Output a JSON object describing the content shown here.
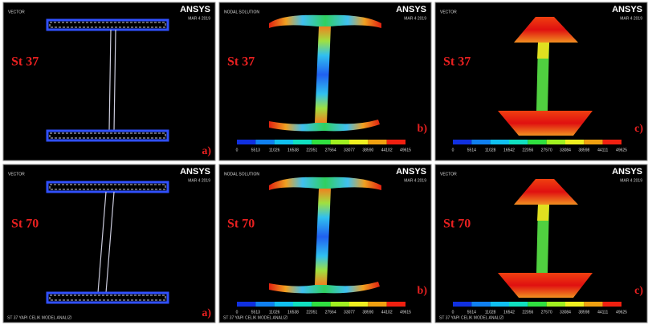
{
  "panels": [
    {
      "header": "VECTOR",
      "logo": "ANSYS",
      "date": "MAR 4 2019",
      "material": "St 37",
      "tag": "a)"
    },
    {
      "header": "NODAL SOLUTION",
      "logo": "ANSYS",
      "date": "MAR 4 2019",
      "material": "St 37",
      "tag": "b)",
      "colorbar": [
        0,
        5513,
        11026,
        16538,
        22051,
        27564,
        33077,
        38590,
        44102,
        49615
      ]
    },
    {
      "header": "VECTOR",
      "logo": "ANSYS",
      "date": "MAR 4 2019",
      "material": "St 37",
      "tag": "c)",
      "colorbar": [
        0,
        5514,
        11028,
        16542,
        22056,
        27570,
        33084,
        38598,
        44111,
        49625
      ]
    },
    {
      "header": "VECTOR",
      "logo": "ANSYS",
      "date": "MAR 4 2019",
      "material": "St 70",
      "tag": "a)",
      "footer": "ST 37 YAPI CELIK MODEL ANALIZI"
    },
    {
      "header": "NODAL SOLUTION",
      "logo": "ANSYS",
      "date": "MAR 4 2019",
      "material": "St 70",
      "tag": "b)",
      "colorbar": [
        0,
        5513,
        11026,
        16538,
        22051,
        27564,
        33077,
        38590,
        44102,
        49615
      ],
      "footer": "ST 37 YAPI CELIK MODEL ANALIZI"
    },
    {
      "header": "VECTOR",
      "logo": "ANSYS",
      "date": "MAR 4 2019",
      "material": "St 70",
      "tag": "c)",
      "colorbar": [
        0,
        5514,
        11028,
        16542,
        22056,
        27570,
        33084,
        38598,
        44111,
        49625
      ],
      "footer": "ST 37 YAPI CELIK MODEL ANALIZI"
    }
  ]
}
